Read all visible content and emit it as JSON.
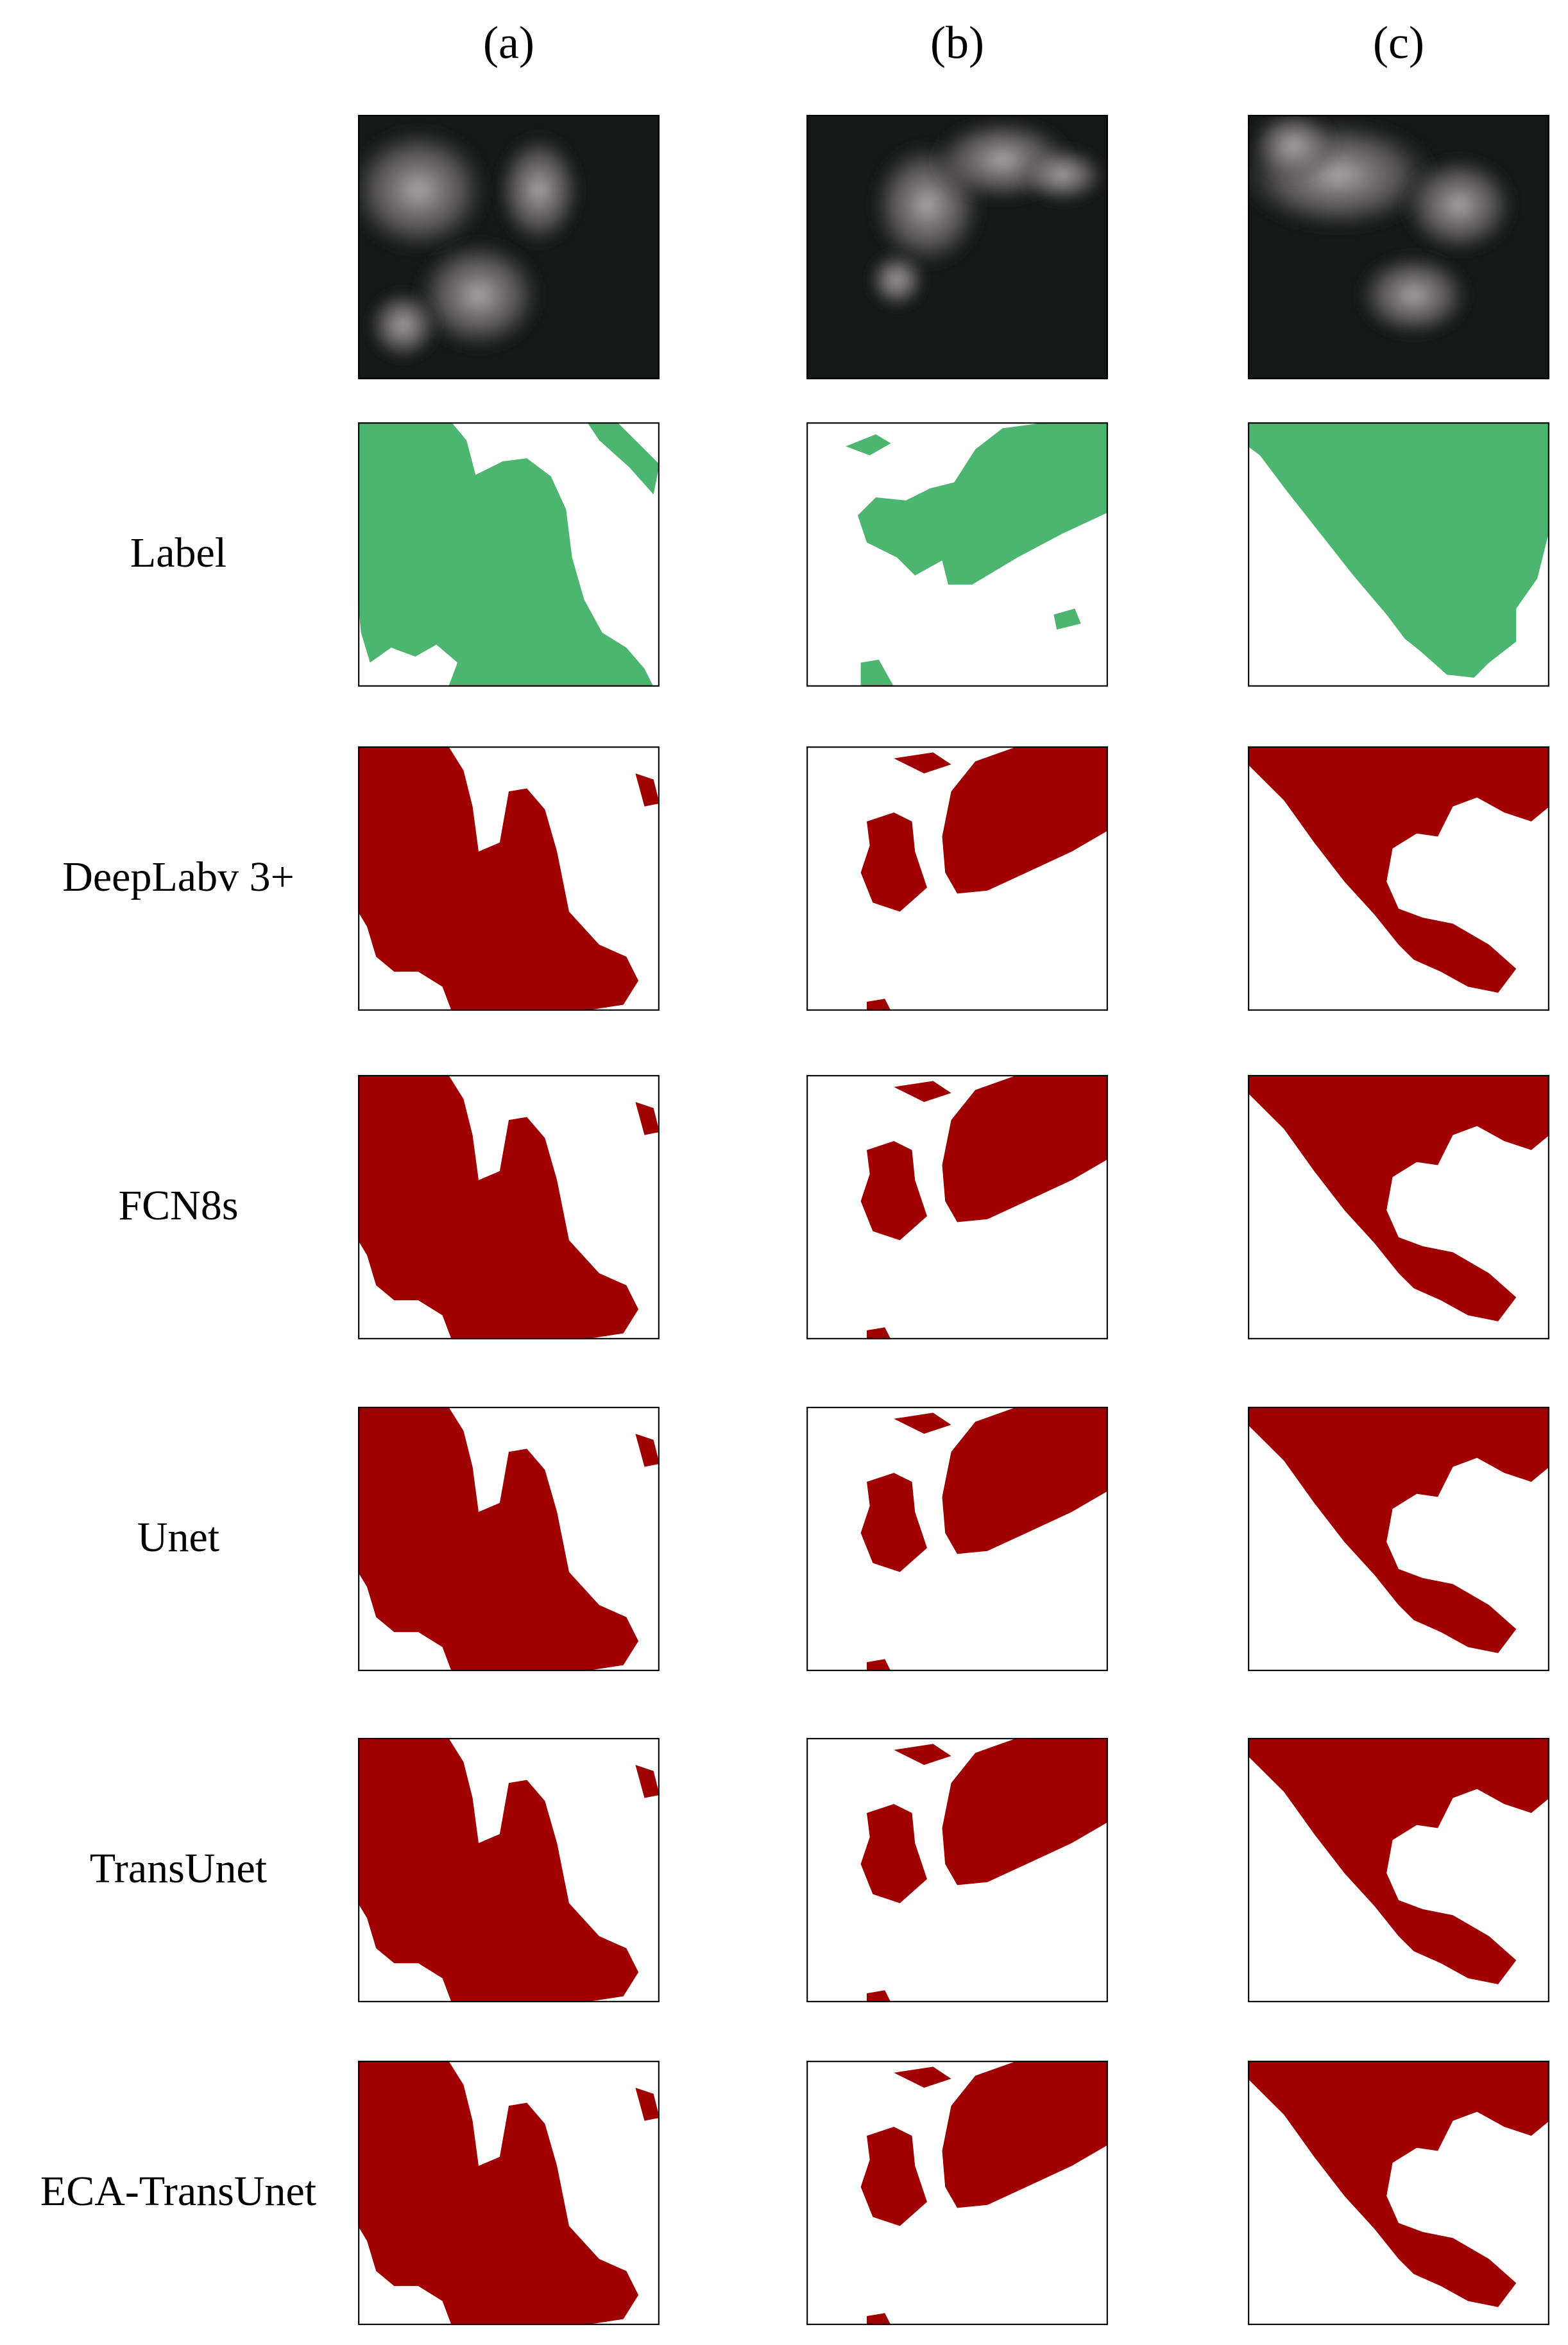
{
  "columns": [
    "(a)",
    "(b)",
    "(c)"
  ],
  "rows": [
    "Label",
    "DeepLabv 3+",
    "FCN8s",
    "Unet",
    "TransUnet",
    "ECA-TransUnet"
  ]
}
